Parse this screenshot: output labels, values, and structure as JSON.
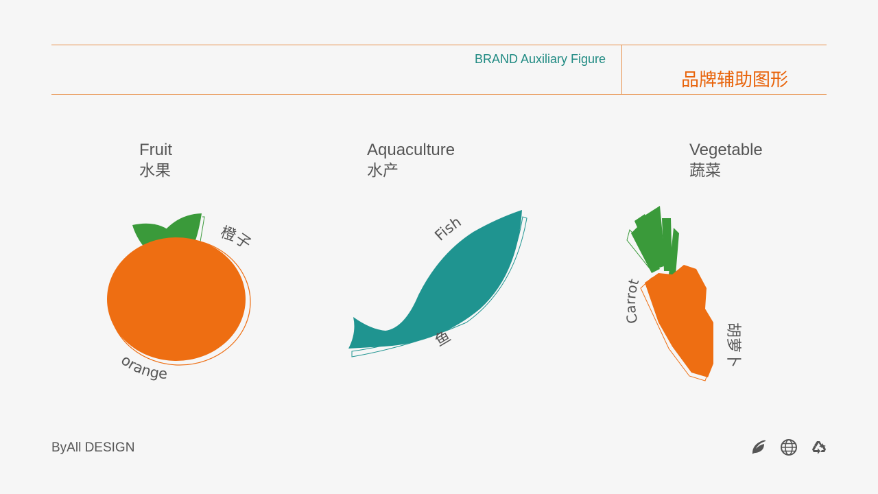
{
  "header": {
    "title_en": "BRAND Auxiliary Figure",
    "title_cn": "品牌辅助图形"
  },
  "categories": [
    {
      "en": "Fruit",
      "cn": "水果",
      "item_en": "orange",
      "item_cn": "橙子"
    },
    {
      "en": "Aquaculture",
      "cn": "水产",
      "item_en": "Fish",
      "item_cn": "鱼"
    },
    {
      "en": "Vegetable",
      "cn": "蔬菜",
      "item_en": "Carrot",
      "item_cn": "胡萝卜"
    }
  ],
  "footer": {
    "brand": "ByAll DESIGN",
    "icons": [
      "leaf-icon",
      "globe-icon",
      "recycle-icon"
    ]
  },
  "colors": {
    "accent_orange": "#ee6e12",
    "accent_teal": "#1f9490",
    "leaf_green": "#3a9a3a",
    "rule": "#e8904a",
    "text_gray": "#555555"
  }
}
